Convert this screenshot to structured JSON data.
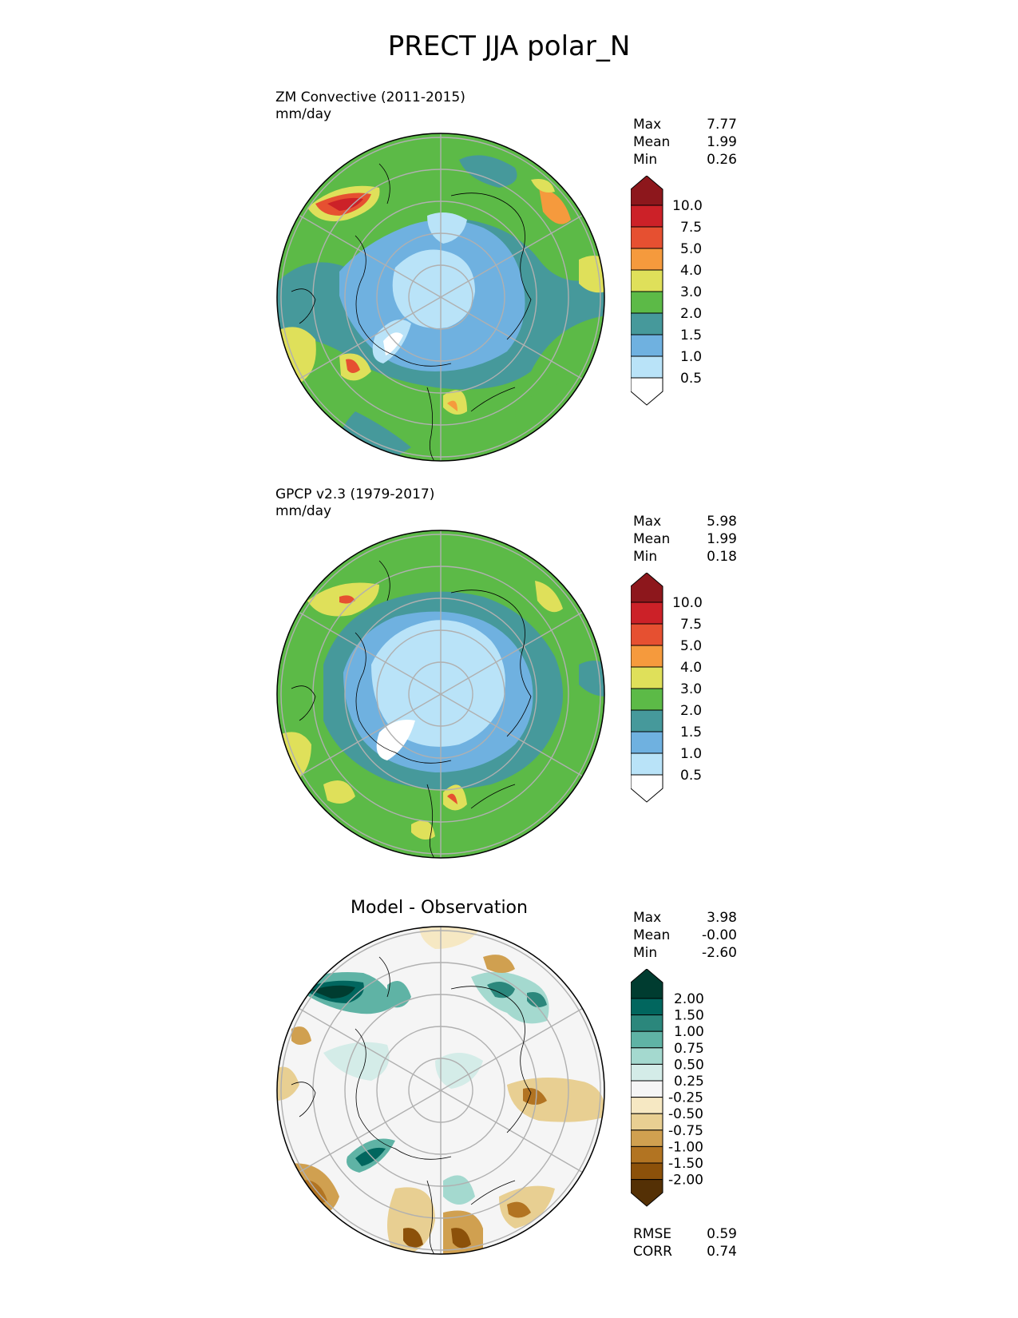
{
  "title": "PRECT JJA polar_N",
  "panels": [
    {
      "label_line1": "ZM Convective (2011-2015)",
      "label_line2": "mm/day",
      "stats": [
        {
          "name": "Max",
          "value": "7.77"
        },
        {
          "name": "Mean",
          "value": "1.99"
        },
        {
          "name": "Min",
          "value": "0.26"
        }
      ],
      "colorbar_ticks": [
        "10.0",
        "7.5",
        "5.0",
        "4.0",
        "3.0",
        "2.0",
        "1.5",
        "1.0",
        "0.5"
      ]
    },
    {
      "label_line1": "GPCP v2.3 (1979-2017)",
      "label_line2": "mm/day",
      "stats": [
        {
          "name": "Max",
          "value": "5.98"
        },
        {
          "name": "Mean",
          "value": "1.99"
        },
        {
          "name": "Min",
          "value": "0.18"
        }
      ],
      "colorbar_ticks": [
        "10.0",
        "7.5",
        "5.0",
        "4.0",
        "3.0",
        "2.0",
        "1.5",
        "1.0",
        "0.5"
      ]
    },
    {
      "title": "Model - Observation",
      "stats": [
        {
          "name": "Max",
          "value": "3.98"
        },
        {
          "name": "Mean",
          "value": "-0.00"
        },
        {
          "name": "Min",
          "value": "-2.60"
        }
      ],
      "colorbar_ticks": [
        "2.00",
        "1.50",
        "1.00",
        "0.75",
        "0.50",
        "0.25",
        "-0.25",
        "-0.50",
        "-0.75",
        "-1.00",
        "-1.50",
        "-2.00"
      ],
      "footer": [
        {
          "name": "RMSE",
          "value": "0.59"
        },
        {
          "name": "CORR",
          "value": "0.74"
        }
      ]
    }
  ],
  "colors": {
    "precip_scale": [
      "#ffffff",
      "#b9e3f8",
      "#6fb1e0",
      "#46999b",
      "#5cba47",
      "#dfe05a",
      "#f59a3d",
      "#e65031",
      "#cc2128",
      "#8d171c"
    ],
    "diff_scale": [
      "#543005",
      "#8c510a",
      "#b27422",
      "#d0a050",
      "#e8cf92",
      "#f6e8c3",
      "#f5f5f5",
      "#d4ece8",
      "#a4d9cf",
      "#5fb3a5",
      "#2b877c",
      "#01665e",
      "#003c30"
    ]
  }
}
